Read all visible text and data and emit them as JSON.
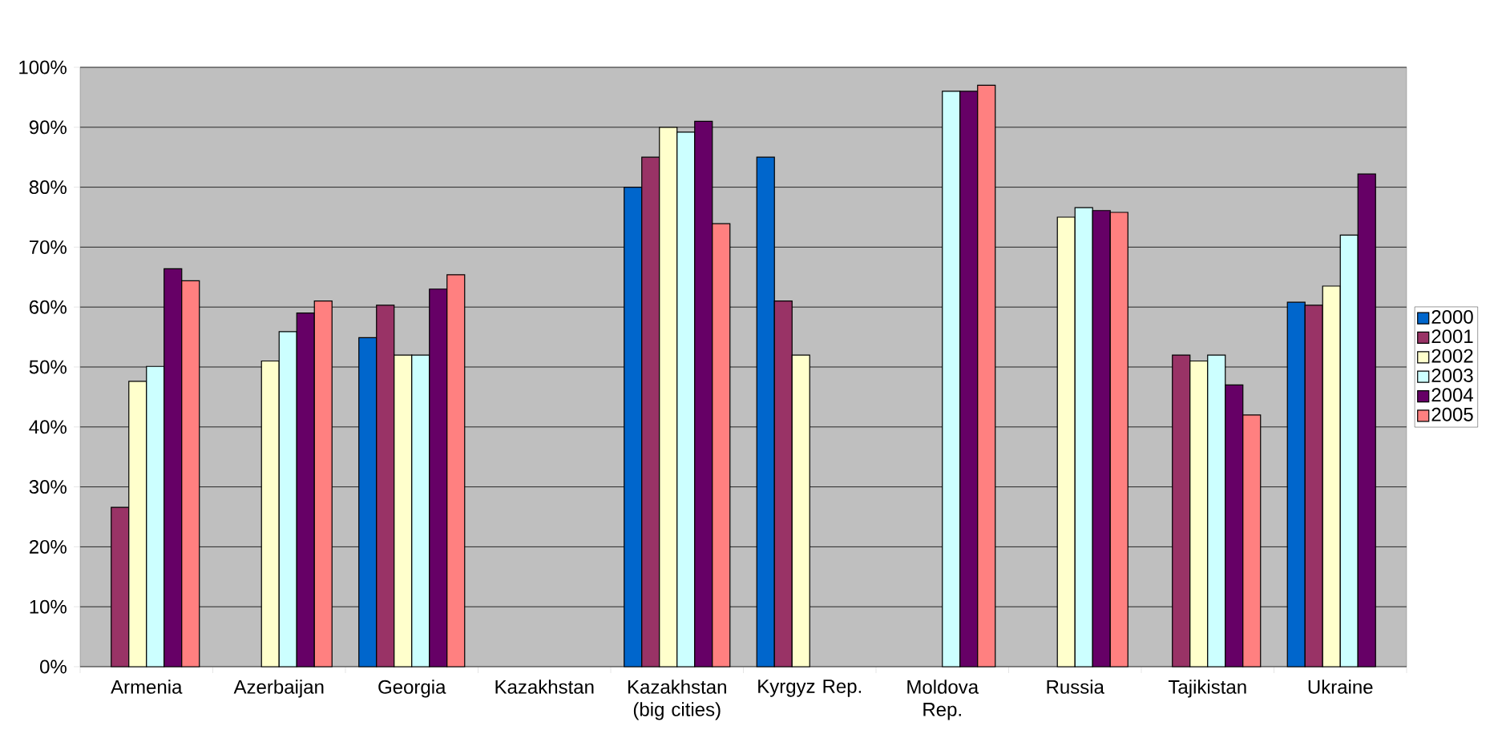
{
  "chart_data": {
    "type": "bar",
    "categories": [
      "Armenia",
      "Azerbaijan",
      "Georgia",
      "Kazakhstan",
      "Kazakhstan (big cities)",
      "Kyrgyz Rep.",
      "Moldova Rep.",
      "Russia",
      "Tajikistan",
      "Ukraine"
    ],
    "series": [
      {
        "name": "2000",
        "color": "#0066cc",
        "values": [
          null,
          null,
          54.9,
          null,
          80,
          85,
          null,
          null,
          null,
          60.8
        ]
      },
      {
        "name": "2001",
        "color": "#993366",
        "values": [
          26.6,
          null,
          60.3,
          null,
          85,
          61,
          null,
          null,
          52,
          60.3
        ]
      },
      {
        "name": "2002",
        "color": "#ffffcc",
        "values": [
          47.6,
          51,
          52,
          null,
          90,
          52,
          null,
          75,
          51,
          63.5
        ]
      },
      {
        "name": "2003",
        "color": "#ccffff",
        "values": [
          50.1,
          55.9,
          52,
          null,
          89.2,
          null,
          96,
          76.6,
          52,
          72
        ]
      },
      {
        "name": "2004",
        "color": "#660066",
        "values": [
          66.4,
          59,
          63,
          null,
          91,
          null,
          96,
          76.1,
          47,
          82.2
        ]
      },
      {
        "name": "2005",
        "color": "#ff8080",
        "values": [
          64.4,
          61,
          65.4,
          null,
          73.9,
          null,
          97,
          75.8,
          42,
          null
        ]
      }
    ],
    "ylim": [
      0,
      100
    ],
    "yticks": [
      {
        "value": 0,
        "label": "0%"
      },
      {
        "value": 10,
        "label": "10%"
      },
      {
        "value": 20,
        "label": "20%"
      },
      {
        "value": 30,
        "label": "30%"
      },
      {
        "value": 40,
        "label": "40%"
      },
      {
        "value": 50,
        "label": "50%"
      },
      {
        "value": 60,
        "label": "60%"
      },
      {
        "value": 70,
        "label": "70%"
      },
      {
        "value": 80,
        "label": "80%"
      },
      {
        "value": 90,
        "label": "90%"
      },
      {
        "value": 100,
        "label": "100%"
      }
    ],
    "grid": "y",
    "legend": "right"
  }
}
